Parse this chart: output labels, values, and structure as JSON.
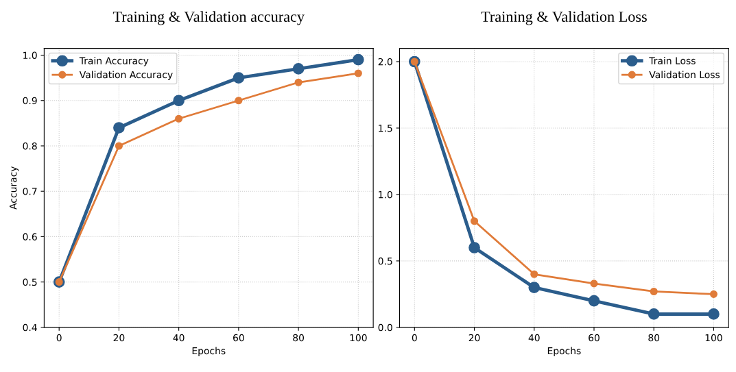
{
  "chart_data": [
    {
      "type": "line",
      "title": "Training & Validation accuracy",
      "xlabel": "Epochs",
      "ylabel": "Accuracy",
      "x": [
        0,
        20,
        40,
        60,
        80,
        100
      ],
      "series": [
        {
          "name": "Train Accuracy",
          "color": "#2b5d8c",
          "values": [
            0.5,
            0.84,
            0.9,
            0.95,
            0.97,
            0.99
          ]
        },
        {
          "name": "Validation Accuracy",
          "color": "#e07b39",
          "values": [
            0.5,
            0.8,
            0.86,
            0.9,
            0.94,
            0.96
          ]
        }
      ],
      "xlim": [
        -5,
        105
      ],
      "xticks": [
        0,
        20,
        40,
        60,
        80,
        100
      ],
      "ylim": [
        0.4,
        1.015
      ],
      "yticks": [
        {
          "value": 0.4,
          "label": "0.4"
        },
        {
          "value": 0.5,
          "label": "0.5"
        },
        {
          "value": 0.6,
          "label": "0.6"
        },
        {
          "value": 0.7,
          "label": "0.7"
        },
        {
          "value": 0.8,
          "label": "0.8"
        },
        {
          "value": 0.9,
          "label": "0.9"
        },
        {
          "value": 1.0,
          "label": "1.0"
        }
      ],
      "grid": true,
      "legend": "upper left",
      "marker": "circle",
      "line_style": "solid"
    },
    {
      "type": "line",
      "title": "Training & Validation Loss",
      "xlabel": "Epochs",
      "x": [
        0,
        20,
        40,
        60,
        80,
        100
      ],
      "series": [
        {
          "name": "Train Loss",
          "color": "#2b5d8c",
          "values": [
            2.0,
            0.6,
            0.3,
            0.2,
            0.1,
            0.1
          ]
        },
        {
          "name": "Validation Loss",
          "color": "#e07b39",
          "values": [
            2.0,
            0.8,
            0.4,
            0.33,
            0.27,
            0.25
          ]
        }
      ],
      "xlim": [
        -5,
        105
      ],
      "xticks": [
        0,
        20,
        40,
        60,
        80,
        100
      ],
      "ylim": [
        0,
        2.1
      ],
      "yticks": [
        {
          "value": 0,
          "label": "0.0"
        },
        {
          "value": 0.5,
          "label": "0.5"
        },
        {
          "value": 1.0,
          "label": "1.0"
        },
        {
          "value": 1.5,
          "label": "1.5"
        },
        {
          "value": 2.0,
          "label": "2.0"
        }
      ],
      "grid": true,
      "legend": "upper right",
      "marker": "circle",
      "line_style": "solid"
    }
  ]
}
